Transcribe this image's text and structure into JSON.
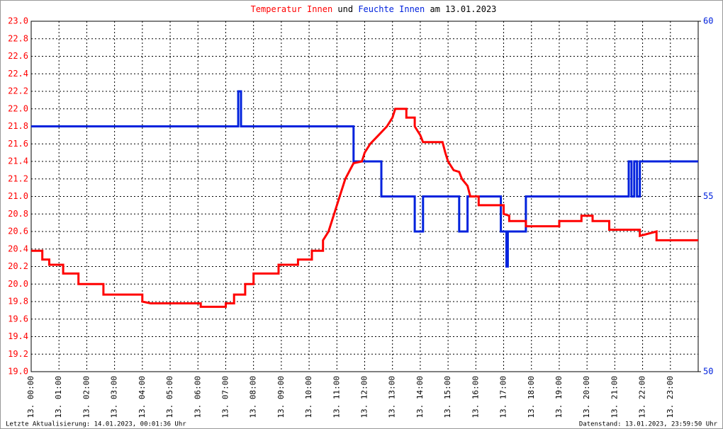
{
  "chart_data": {
    "type": "line",
    "title_link": "und",
    "title_date": "am 13.01.2023",
    "footer_left": "Letzte Aktualisierung: 14.01.2023, 00:01:36 Uhr",
    "footer_right": "Datenstand: 13.01.2023, 23:59:50 Uhr",
    "xlim": [
      0,
      24
    ],
    "xticks": [
      {
        "value": 0,
        "label": "13. 00:00"
      },
      {
        "value": 1,
        "label": "13. 01:00"
      },
      {
        "value": 2,
        "label": "13. 02:00"
      },
      {
        "value": 3,
        "label": "13. 03:00"
      },
      {
        "value": 4,
        "label": "13. 04:00"
      },
      {
        "value": 5,
        "label": "13. 05:00"
      },
      {
        "value": 6,
        "label": "13. 06:00"
      },
      {
        "value": 7,
        "label": "13. 07:00"
      },
      {
        "value": 8,
        "label": "13. 08:00"
      },
      {
        "value": 9,
        "label": "13. 09:00"
      },
      {
        "value": 10,
        "label": "13. 10:00"
      },
      {
        "value": 11,
        "label": "13. 11:00"
      },
      {
        "value": 12,
        "label": "13. 12:00"
      },
      {
        "value": 13,
        "label": "13. 13:00"
      },
      {
        "value": 14,
        "label": "13. 14:00"
      },
      {
        "value": 15,
        "label": "13. 15:00"
      },
      {
        "value": 16,
        "label": "13. 16:00"
      },
      {
        "value": 17,
        "label": "13. 17:00"
      },
      {
        "value": 18,
        "label": "13. 18:00"
      },
      {
        "value": 19,
        "label": "13. 19:00"
      },
      {
        "value": 20,
        "label": "13. 20:00"
      },
      {
        "value": 21,
        "label": "13. 21:00"
      },
      {
        "value": 22,
        "label": "13. 22:00"
      },
      {
        "value": 23,
        "label": "13. 23:00"
      }
    ],
    "ylim": [
      19,
      23
    ],
    "yticks": [
      {
        "value": 19,
        "label": "19.0"
      },
      19.2,
      19.4,
      19.6,
      19.8,
      {
        "value": 20,
        "label": "20.0"
      },
      20.2,
      20.4,
      20.6,
      20.8,
      {
        "value": 21,
        "label": "21.0"
      },
      21.2,
      21.4,
      21.6,
      21.8,
      {
        "value": 22,
        "label": "22.0"
      },
      22.2,
      22.4,
      22.6,
      22.8,
      {
        "value": 23,
        "label": "23.0"
      }
    ],
    "y2lim": [
      50,
      60
    ],
    "y2ticks": [
      50,
      55,
      60
    ],
    "grid": true,
    "series": [
      {
        "name": "Temperatur Innen",
        "color": "#ff0000",
        "x": [
          0,
          0.4,
          0.4,
          0.65,
          0.65,
          1.15,
          1.15,
          1.7,
          1.7,
          2.6,
          2.6,
          4.0,
          4.0,
          4.3,
          6.1,
          6.1,
          7.0,
          7.0,
          7.3,
          7.3,
          7.7,
          7.7,
          8.0,
          8.0,
          8.9,
          8.9,
          9.6,
          9.6,
          10.1,
          10.1,
          10.5,
          10.5,
          10.7,
          10.9,
          11.1,
          11.3,
          11.6,
          11.9,
          12.0,
          12.2,
          12.5,
          12.8,
          13.0,
          13.1,
          13.5,
          13.5,
          13.8,
          13.8,
          14.0,
          14.1,
          14.8,
          14.9,
          15.0,
          15.2,
          15.4,
          15.5,
          15.7,
          15.8,
          16.1,
          16.1,
          17.0,
          17.0,
          17.2,
          17.2,
          17.8,
          17.8,
          19.0,
          19.0,
          19.8,
          19.8,
          20.2,
          20.2,
          20.8,
          20.8,
          21.9,
          21.9,
          22.5,
          22.5,
          24
        ],
        "values": [
          20.38,
          20.38,
          20.28,
          20.28,
          20.22,
          20.22,
          20.12,
          20.12,
          20.0,
          20.0,
          19.88,
          19.88,
          19.8,
          19.78,
          19.78,
          19.74,
          19.74,
          19.78,
          19.78,
          19.88,
          19.88,
          20.0,
          20.0,
          20.12,
          20.12,
          20.22,
          20.22,
          20.28,
          20.28,
          20.38,
          20.38,
          20.5,
          20.6,
          20.8,
          21.0,
          21.2,
          21.38,
          21.4,
          21.5,
          21.6,
          21.7,
          21.8,
          21.9,
          22.0,
          22.0,
          21.9,
          21.9,
          21.8,
          21.7,
          21.62,
          21.62,
          21.5,
          21.4,
          21.3,
          21.28,
          21.2,
          21.12,
          21.0,
          21.0,
          20.9,
          20.9,
          20.8,
          20.78,
          20.72,
          20.72,
          20.66,
          20.66,
          20.72,
          20.72,
          20.78,
          20.78,
          20.72,
          20.72,
          20.62,
          20.62,
          20.55,
          20.6,
          20.5,
          20.5
        ]
      },
      {
        "name": "Feuchte Innen",
        "color": "#0022dd",
        "axis": "y2",
        "x": [
          0,
          7.45,
          7.45,
          7.55,
          7.55,
          11.6,
          11.6,
          12.6,
          12.6,
          13.8,
          13.8,
          14.1,
          14.1,
          15.4,
          15.4,
          15.7,
          15.7,
          16.9,
          16.9,
          17.1,
          17.1,
          17.15,
          17.15,
          17.8,
          17.8,
          21.5,
          21.5,
          21.6,
          21.6,
          21.7,
          21.7,
          21.8,
          21.8,
          21.9,
          21.9,
          24
        ],
        "values": [
          57,
          57,
          58,
          58,
          57,
          57,
          56,
          56,
          55,
          55,
          54,
          54,
          55,
          55,
          54,
          54,
          55,
          55,
          54,
          54,
          53,
          53,
          54,
          54,
          55,
          55,
          56,
          56,
          55,
          55,
          56,
          56,
          55,
          55,
          56,
          56
        ]
      }
    ]
  }
}
